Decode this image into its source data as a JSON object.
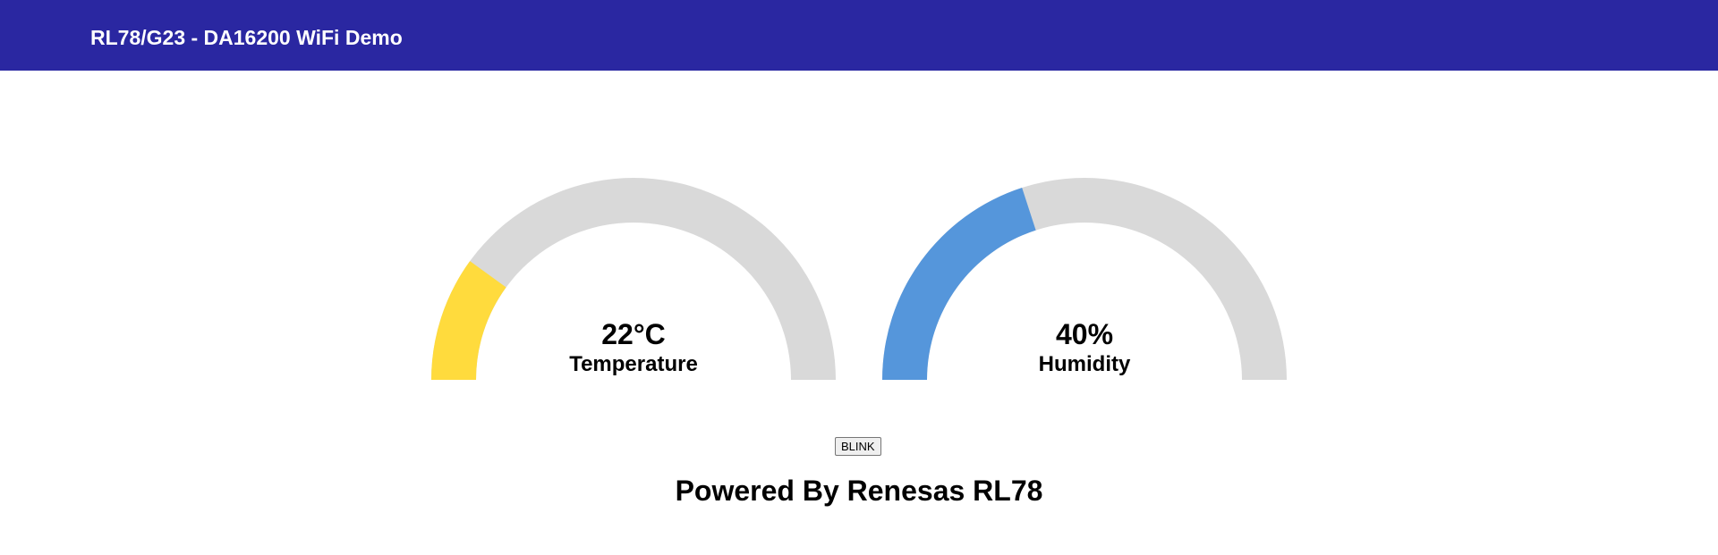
{
  "header": {
    "title": "RL78/G23 - DA16200 WiFi Demo",
    "background_color": "#2a27a1"
  },
  "gauges": [
    {
      "id": "temperature",
      "value_text": "22°C",
      "label": "Temperature",
      "fill_fraction": 0.2,
      "fill_color": "#ffdb3d",
      "track_color": "#d9d9d9"
    },
    {
      "id": "humidity",
      "value_text": "40%",
      "label": "Humidity",
      "fill_fraction": 0.4,
      "fill_color": "#5596db",
      "track_color": "#d9d9d9"
    }
  ],
  "controls": {
    "blink_label": "BLINK"
  },
  "footer": {
    "text": "Powered By Renesas RL78"
  }
}
